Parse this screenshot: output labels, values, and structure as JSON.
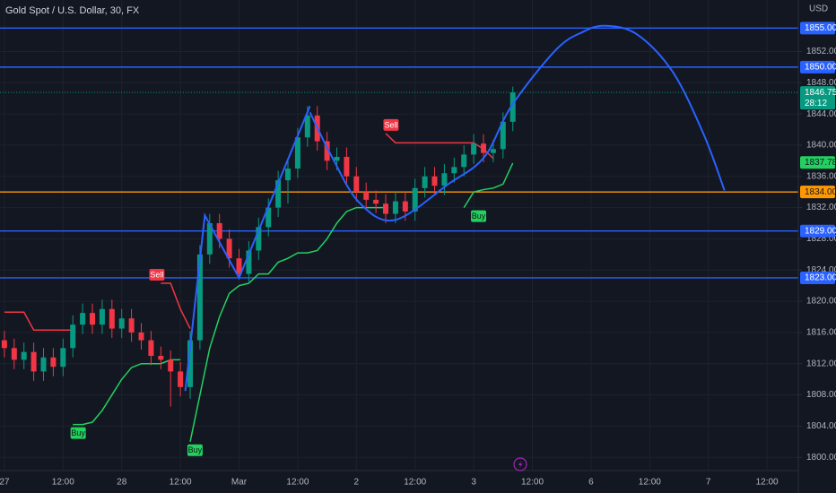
{
  "chart_data": {
    "type": "candlestick",
    "title": "Gold Spot / U.S. Dollar, 30, FX",
    "currency": "USD",
    "up_color": "#089981",
    "down_color": "#f23645",
    "grid": true,
    "xlim": [
      -0.9,
      162.4
    ],
    "ylim": [
      1798.3,
      1858.6
    ],
    "xticks": [
      {
        "value": 0,
        "label": "27"
      },
      {
        "value": 12,
        "label": "12:00"
      },
      {
        "value": 24,
        "label": "28"
      },
      {
        "value": 36,
        "label": "12:00"
      },
      {
        "value": 48,
        "label": "Mar"
      },
      {
        "value": 60,
        "label": "12:00"
      },
      {
        "value": 72,
        "label": "2"
      },
      {
        "value": 84,
        "label": "12:00"
      },
      {
        "value": 96,
        "label": "3"
      },
      {
        "value": 108,
        "label": "12:00"
      },
      {
        "value": 120,
        "label": "6"
      },
      {
        "value": 132,
        "label": "12:00"
      },
      {
        "value": 144,
        "label": "7"
      },
      {
        "value": 156,
        "label": "12:00"
      }
    ],
    "yticks": [
      {
        "value": 1800,
        "label": "1800.00"
      },
      {
        "value": 1804,
        "label": "1804.00"
      },
      {
        "value": 1808,
        "label": "1808.00"
      },
      {
        "value": 1812,
        "label": "1812.00"
      },
      {
        "value": 1816,
        "label": "1816.00"
      },
      {
        "value": 1820,
        "label": "1820.00"
      },
      {
        "value": 1824,
        "label": "1824.00"
      },
      {
        "value": 1828,
        "label": "1828.00"
      },
      {
        "value": 1832,
        "label": "1832.00"
      },
      {
        "value": 1836,
        "label": "1836.00"
      },
      {
        "value": 1840,
        "label": "1840.00"
      },
      {
        "value": 1844,
        "label": "1844.00"
      },
      {
        "value": 1848,
        "label": "1848.00"
      },
      {
        "value": 1852,
        "label": "1852.00"
      }
    ],
    "x": [
      0,
      2,
      4,
      6,
      8,
      10,
      12,
      14,
      16,
      18,
      20,
      22,
      24,
      26,
      28,
      30,
      32,
      34,
      36,
      38,
      40,
      42,
      44,
      46,
      48,
      50,
      52,
      54,
      56,
      58,
      60,
      62,
      64,
      66,
      68,
      70,
      72,
      74,
      76,
      78,
      80,
      82,
      84,
      86,
      88,
      90,
      92,
      94,
      96,
      98,
      100,
      102,
      104
    ],
    "open": [
      1815,
      1814,
      1812.5,
      1813.5,
      1811,
      1812.8,
      1811.6,
      1814,
      1817,
      1818.5,
      1817,
      1819,
      1816.5,
      1817.8,
      1816,
      1815,
      1813,
      1812.5,
      1811,
      1809,
      1815,
      1826,
      1830,
      1828,
      1825.5,
      1823.5,
      1826.5,
      1829.5,
      1832,
      1835.5,
      1837,
      1841,
      1843.8,
      1840.5,
      1838,
      1838.5,
      1836,
      1834,
      1833,
      1832.5,
      1831.2,
      1832.8,
      1831.5,
      1834.5,
      1836,
      1834.8,
      1836.4,
      1837.2,
      1838.8,
      1840.2,
      1839,
      1839.5,
      1843
    ],
    "high": [
      1816.2,
      1815.2,
      1814.7,
      1814.7,
      1814,
      1814,
      1815.2,
      1818.2,
      1819.7,
      1819.7,
      1820.2,
      1820.2,
      1819,
      1819,
      1817.2,
      1816.2,
      1814.2,
      1813.7,
      1812.2,
      1816.2,
      1827.2,
      1831.2,
      1831.2,
      1829.2,
      1826.7,
      1827.7,
      1830.7,
      1833.2,
      1836.7,
      1838.2,
      1842.2,
      1845,
      1845,
      1841.7,
      1839.7,
      1839.7,
      1837.2,
      1835.2,
      1834.2,
      1833.7,
      1834,
      1834,
      1835.7,
      1837.2,
      1837.2,
      1837.6,
      1838.4,
      1840,
      1841.4,
      1841.4,
      1840.7,
      1844.2,
      1847.5
    ],
    "low": [
      1812.8,
      1811.3,
      1811.3,
      1809.8,
      1809.8,
      1810.4,
      1810.4,
      1812.8,
      1815.8,
      1815.8,
      1815.8,
      1815.3,
      1815.3,
      1814.8,
      1813.8,
      1811.8,
      1811.3,
      1806.5,
      1807.8,
      1807.5,
      1813.8,
      1824.8,
      1826.8,
      1824.3,
      1822.8,
      1822.3,
      1825.3,
      1828.3,
      1830.8,
      1832.5,
      1835.8,
      1839.8,
      1839.3,
      1836.8,
      1836.8,
      1834.8,
      1832.8,
      1831.8,
      1831.3,
      1830,
      1830,
      1830.3,
      1830.3,
      1833.3,
      1833.6,
      1833.6,
      1835.2,
      1836,
      1837.6,
      1837.8,
      1837.8,
      1838.3,
      1841.8
    ],
    "close": [
      1814,
      1812.5,
      1813.5,
      1811,
      1812.8,
      1811.6,
      1814,
      1817,
      1818.5,
      1817,
      1819,
      1816.5,
      1817.8,
      1816,
      1815,
      1813,
      1812.5,
      1811,
      1809,
      1815,
      1826,
      1830,
      1828,
      1825.5,
      1823.5,
      1826.5,
      1829.5,
      1832,
      1835.5,
      1837,
      1841,
      1843.8,
      1840.5,
      1838,
      1838.5,
      1836,
      1834,
      1833,
      1832.5,
      1831.2,
      1832.8,
      1831.5,
      1834.5,
      1836,
      1834.8,
      1836.4,
      1837.2,
      1838.8,
      1840.2,
      1839,
      1839.5,
      1843,
      1846.75
    ],
    "supertrend": [
      {
        "color": "#f23645",
        "values": [
          1818.6,
          1818.6,
          1818.6,
          1816.3,
          1816.3,
          1816.3,
          1816.3,
          1816.3,
          null,
          null,
          null,
          null,
          null,
          null,
          null,
          null,
          1822.3,
          1822.3,
          1819,
          1816.5,
          null,
          null,
          null,
          null,
          null,
          null,
          null,
          null,
          null,
          null,
          null,
          null,
          null,
          null,
          null,
          null,
          null,
          null,
          null,
          1841.5,
          1840.3,
          1840.3,
          1840.3,
          1840.3,
          1840.3,
          1840.3,
          1840.3,
          1840.3,
          1840.3,
          1839.5,
          1838.3,
          null,
          null
        ]
      },
      {
        "color": "#22d15f",
        "values": [
          null,
          null,
          null,
          null,
          null,
          null,
          null,
          1804.2,
          1804.2,
          1804.5,
          1806,
          1808,
          1810,
          1811.5,
          1812,
          1812,
          1812,
          1812.5,
          1812.5,
          null,
          null,
          null,
          null,
          null,
          null,
          null,
          null,
          null,
          null,
          null,
          null,
          null,
          null,
          null,
          null,
          null,
          null,
          null,
          null,
          null,
          null,
          null,
          null,
          null,
          null,
          null,
          null,
          1832,
          1834,
          1834.3,
          1834.5,
          1835,
          1837.7
        ]
      },
      {
        "color": "#22d15f",
        "values": [
          null,
          null,
          null,
          null,
          null,
          null,
          null,
          null,
          null,
          null,
          null,
          null,
          null,
          null,
          null,
          null,
          null,
          null,
          null,
          1802,
          1808,
          1814,
          1818,
          1821,
          1822,
          1822.3,
          1823.5,
          1823.5,
          1825,
          1825.5,
          1826.2,
          1826.2,
          1826.5,
          1828,
          1830,
          1831.5,
          1832,
          1832,
          1832,
          1832,
          null,
          null,
          null,
          null,
          null,
          null,
          null,
          null,
          null,
          null,
          null,
          null,
          null
        ]
      }
    ],
    "signals": [
      {
        "label": "Sell",
        "x": 31.1,
        "y": 1822.3,
        "color": "#f23645"
      },
      {
        "label": "Sell",
        "x": 79,
        "y": 1841.5,
        "color": "#f23645"
      },
      {
        "label": "Buy",
        "x": 15,
        "y": 1804.2,
        "color": "#22d15f"
      },
      {
        "label": "Buy",
        "x": 38.9,
        "y": 1802,
        "color": "#22d15f"
      },
      {
        "label": "Buy",
        "x": 96.9,
        "y": 1832,
        "color": "#22d15f"
      }
    ],
    "drawings": [
      {
        "color": "#2962ff",
        "smooth": false,
        "x": [
          37,
          41,
          48,
          62.5
        ],
        "y": [
          1808.5,
          1831,
          1823,
          1845
        ]
      },
      {
        "color": "#2962ff",
        "smooth": true,
        "x": [
          62.5,
          67,
          72.5,
          79.8,
          90.8,
          98.2,
          103.7,
          112.8,
          118.3,
          122.9,
          129.4,
          136.7,
          143.1,
          147.3
        ],
        "y": [
          1844.2,
          1838.5,
          1832.7,
          1830.4,
          1835,
          1838.5,
          1845,
          1852.2,
          1854.5,
          1855.3,
          1854.2,
          1849.4,
          1841.3,
          1834.2
        ]
      }
    ],
    "hlines": [
      {
        "value": 1855,
        "label": "1855.00",
        "color": "#2962ff"
      },
      {
        "value": 1850,
        "label": "1850.00",
        "color": "#2962ff"
      },
      {
        "value": 1834,
        "label": "1834.00",
        "color": "#ff9800"
      },
      {
        "value": 1829,
        "label": "1829.00",
        "color": "#2962ff"
      },
      {
        "value": 1823,
        "label": "1823.00",
        "color": "#2962ff"
      }
    ],
    "last_price": {
      "value": 1846.75,
      "countdown": "28:12",
      "color": "#089981"
    },
    "indicator_price": {
      "value": 1837.78,
      "color": "#22d15f"
    }
  }
}
